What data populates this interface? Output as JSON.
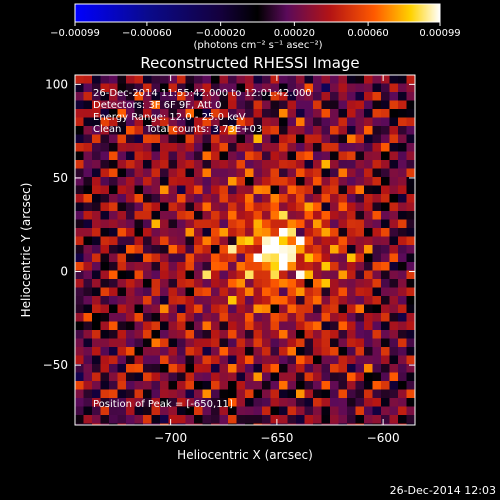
{
  "chart_data": {
    "type": "heatmap",
    "title": "Reconstructed RHESSI Image",
    "xlabel": "Heliocentric X (arcsec)",
    "ylabel": "Heliocentric Y (arcsec)",
    "xlim": [
      -745,
      -585
    ],
    "ylim": [
      -82,
      105
    ],
    "xticks": [
      -700,
      -650,
      -600
    ],
    "xtick_labels": [
      "−700",
      "−650",
      "−600"
    ],
    "yticks": [
      -50,
      0,
      50,
      100
    ],
    "ytick_labels": [
      "−50",
      "0",
      "50",
      "100"
    ],
    "colorbar": {
      "range": [
        -0.00099,
        0.00099
      ],
      "ticks": [
        -0.00099,
        -0.0006,
        -0.0002,
        0.0002,
        0.0006,
        0.00099
      ],
      "tick_labels": [
        "−0.00099",
        "−0.00060",
        "−0.00020",
        "0.00020",
        "0.00060",
        "0.00099"
      ],
      "unit_label": "(photons cm⁻² s⁻¹ asec⁻²)",
      "colors": [
        "#0000ff",
        "#0a0a8c",
        "#14003c",
        "#000000",
        "#5a0a5a",
        "#b41414",
        "#ff5a00",
        "#ffd200",
        "#ffffff"
      ]
    },
    "peak": {
      "x": -650,
      "y": 11
    },
    "info_lines": [
      "26-Dec-2014 11:55:42.000 to 12:01:42.000",
      "Detectors: 3F 6F 9F, Att 0",
      "Energy Range: 12.0 - 25.0 keV"
    ],
    "clean_label": "Clean",
    "total_counts_label": "Total counts: 3.73E+03",
    "peak_label": "Position of Peak = [-650,11]",
    "grid": false,
    "legend": "none"
  },
  "footer_timestamp": "26-Dec-2014 12:03"
}
